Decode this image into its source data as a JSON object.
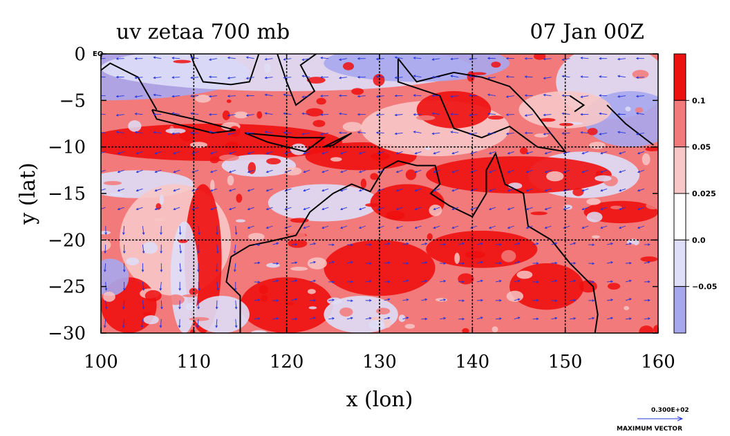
{
  "chart_data": {
    "type": "heatmap",
    "title_left": "uv zetaa 700 mb",
    "title_right": "07 Jan 00Z",
    "xlabel": "x (lon)",
    "ylabel": "y (lat)",
    "xlim": [
      100,
      160
    ],
    "ylim": [
      -30,
      0
    ],
    "x_ticks": [
      "100",
      "110",
      "120",
      "130",
      "140",
      "150",
      "160"
    ],
    "y_ticks": [
      "0",
      "−5",
      "−10",
      "−15",
      "−20",
      "−25",
      "−30"
    ],
    "grid": true,
    "colorbar": {
      "labels": [
        "0.1",
        "0.05",
        "0.025",
        "0.0",
        "−0.05"
      ],
      "colors": [
        "#ee0f0f",
        "#f27a7a",
        "#f7c6c6",
        "#ffffff",
        "#dedef8",
        "#a7a7ee"
      ]
    },
    "vector_reference": {
      "value": "0.300E+02",
      "label": "MAXIMUM VECTOR"
    },
    "corner_label": "EQ"
  },
  "colors": {
    "vectors": "#2233dd",
    "coast": "#000000",
    "red": "#ee0f0f",
    "pink": "#f27a7a",
    "lightpink": "#f7c6c6",
    "lightblue": "#dedef8",
    "blue": "#a7a7ee"
  }
}
